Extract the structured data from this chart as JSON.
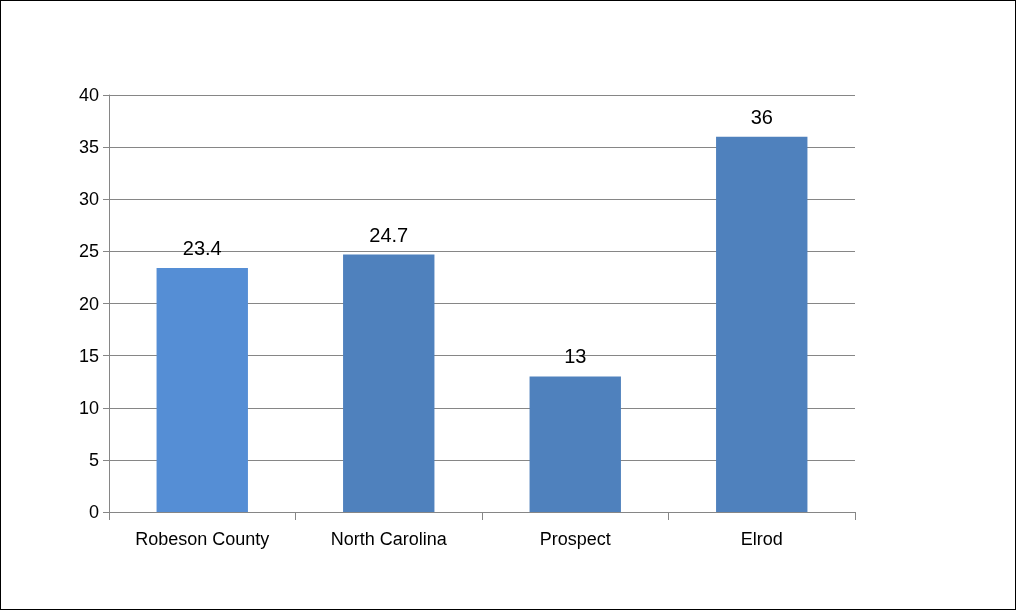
{
  "chart_data": {
    "type": "bar",
    "categories": [
      "Robeson County",
      "North Carolina",
      "Prospect",
      "Elrod"
    ],
    "values": [
      23.4,
      24.7,
      13,
      36
    ],
    "colors": [
      "#558ed5",
      "#4f81bd",
      "#4f81bd",
      "#4f81bd"
    ],
    "ylim": [
      0,
      40
    ],
    "yticks": [
      0,
      5,
      10,
      15,
      20,
      25,
      30,
      35,
      40
    ],
    "grid": "y",
    "data_labels": true
  }
}
